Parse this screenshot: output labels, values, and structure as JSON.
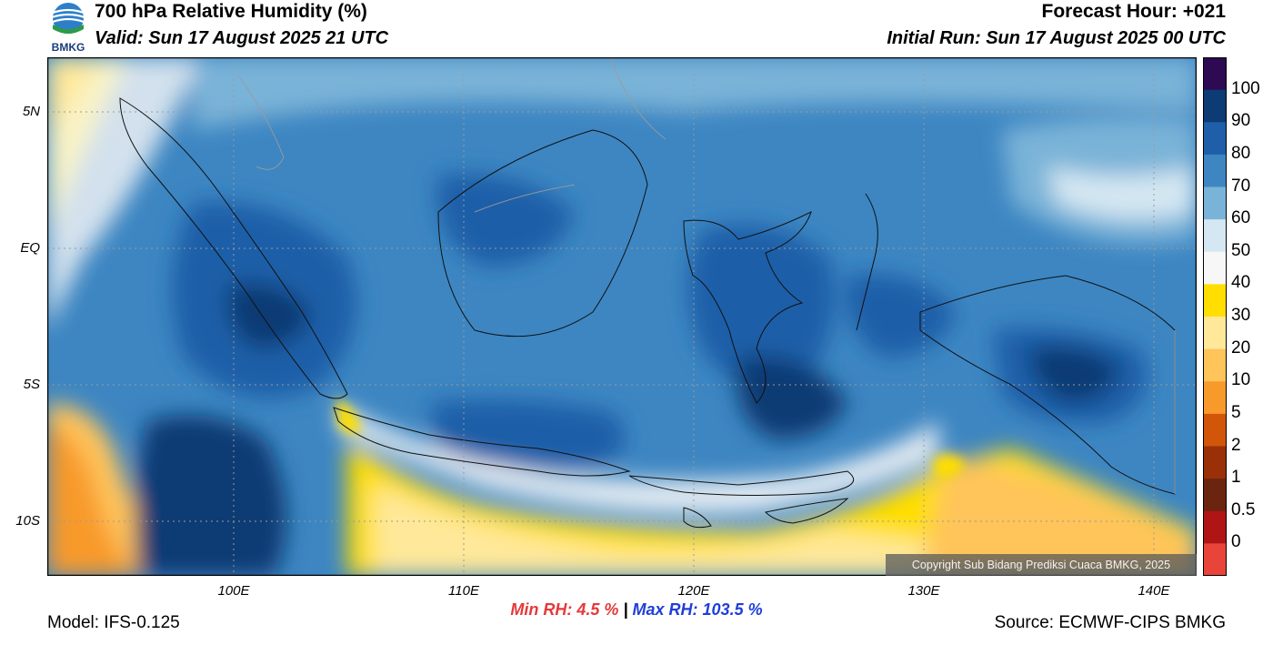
{
  "header": {
    "title": "700 hPa Relative Humidity (%)",
    "valid": "Valid: Sun 17 August 2025 21 UTC",
    "forecast_hour": "Forecast Hour: +021",
    "initial_run": "Initial Run: Sun 17 August 2025 00 UTC",
    "logo_text": "BMKG"
  },
  "axes": {
    "latitude_labels": [
      "5N",
      "EQ",
      "5S",
      "10S"
    ],
    "longitude_labels": [
      "100E",
      "110E",
      "120E",
      "130E",
      "140E"
    ]
  },
  "stats": {
    "min_label": "Min RH:",
    "min_value": "4.5 %",
    "separator": "|",
    "max_label": "Max RH:",
    "max_value": "103.5 %"
  },
  "footer": {
    "model": "Model: IFS-0.125",
    "source": "Source: ECMWF-CIPS BMKG",
    "copyright": "Copyright Sub Bidang Prediksi Cuaca BMKG, 2025"
  },
  "colorbar": {
    "labels": [
      "100",
      "90",
      "80",
      "70",
      "60",
      "50",
      "40",
      "30",
      "20",
      "10",
      "5",
      "2",
      "1",
      "0.5",
      "0"
    ],
    "colors": [
      "#2d0a52",
      "#0d3b73",
      "#1f5ea8",
      "#3d86c2",
      "#7ab3d8",
      "#d4e7f2",
      "#f7f7f7",
      "#ffde00",
      "#ffe89a",
      "#ffc45a",
      "#f89a2b",
      "#d2560a",
      "#9a3008",
      "#6b2410",
      "#b01515",
      "#e8443a"
    ]
  },
  "colors": {
    "ocean_dry": "#f7f7f7",
    "coastline": "#111111",
    "graticule": "#9a9a9a"
  }
}
